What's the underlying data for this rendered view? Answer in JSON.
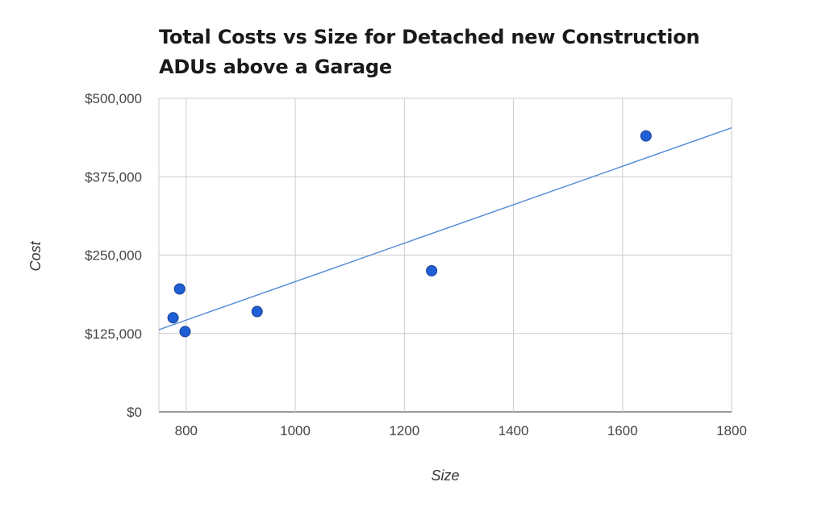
{
  "chart_data": {
    "type": "scatter",
    "title": [
      "Total Costs vs Size for Detached new Construction",
      "ADUs above a Garage"
    ],
    "xlabel": "Size",
    "ylabel": "Cost",
    "xlim": [
      750,
      1800
    ],
    "ylim": [
      0,
      500000
    ],
    "x_ticks": [
      800,
      1000,
      1200,
      1400,
      1600,
      1800
    ],
    "x_tick_labels": [
      "800",
      "1000",
      "1200",
      "1400",
      "1600",
      "1800"
    ],
    "y_ticks": [
      0,
      125000,
      250000,
      375000,
      500000
    ],
    "y_tick_labels": [
      "$0",
      "$125,000",
      "$250,000",
      "$375,000",
      "$500,000"
    ],
    "grid": true,
    "series": [
      {
        "points": [
          {
            "x": 776,
            "y": 150000
          },
          {
            "x": 788,
            "y": 196000
          },
          {
            "x": 798,
            "y": 128000
          },
          {
            "x": 930,
            "y": 160000
          },
          {
            "x": 1250,
            "y": 225000
          },
          {
            "x": 1643,
            "y": 440000
          }
        ],
        "color": "#1f5fd6"
      }
    ],
    "trendline": {
      "type": "linear",
      "x": [
        750,
        1800
      ],
      "y": [
        131000,
        453000
      ],
      "color": "#5b8fd8"
    }
  }
}
